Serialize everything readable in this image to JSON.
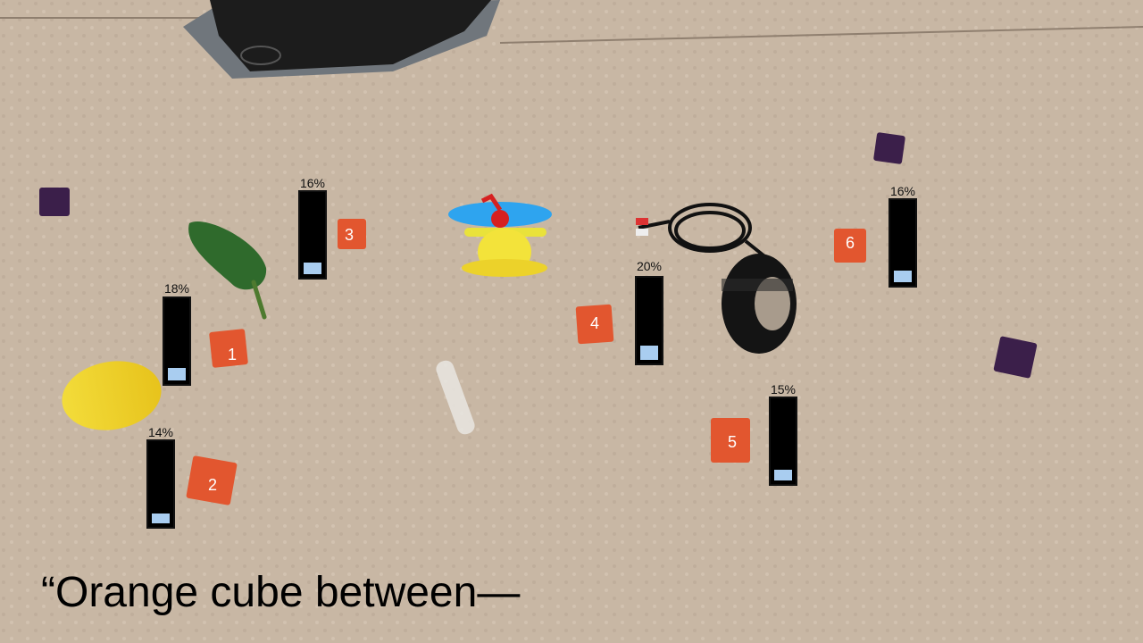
{
  "bars": [
    {
      "id": "1",
      "percent_label": "18%",
      "level": 0.18
    },
    {
      "id": "2",
      "percent_label": "14%",
      "level": 0.14
    },
    {
      "id": "3",
      "percent_label": "16%",
      "level": 0.16
    },
    {
      "id": "4",
      "percent_label": "20%",
      "level": 0.2
    },
    {
      "id": "5",
      "percent_label": "15%",
      "level": 0.15
    },
    {
      "id": "6",
      "percent_label": "16%",
      "level": 0.16
    }
  ],
  "cube_labels": [
    "1",
    "2",
    "3",
    "4",
    "5",
    "6"
  ],
  "caption": "“Orange cube between—",
  "colors": {
    "floor": "#c9b8a6",
    "orange_cube": "#e2562f",
    "purple_cube": "#3b1f4a",
    "bar_fill": "#a9cdf0",
    "bar_bg": "#000000"
  }
}
